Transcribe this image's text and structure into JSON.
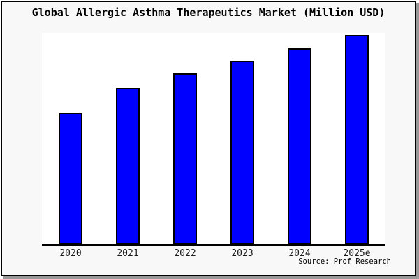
{
  "window": {
    "background_color": "#f8f8f8",
    "plot_background_color": "#ffffff",
    "border_color": "#000000",
    "shadow_color": "#999999"
  },
  "header": {
    "title": "Global Allergic Asthma Therapeutics Market (Million USD)"
  },
  "footer": {
    "source": "Source: Prof Research"
  },
  "chart_data": {
    "type": "bar",
    "title": "Global Allergic Asthma Therapeutics Market (Million USD)",
    "categories": [
      "2020",
      "2021",
      "2022",
      "2023",
      "2024",
      "2025e"
    ],
    "values": [
      62.5,
      74.5,
      81.5,
      87.5,
      93.5,
      100
    ],
    "value_scale_note": "no y-axis, gridlines or data labels shown; values estimated from bar heights relative to tallest bar (2025e = 100)",
    "xlabel": "",
    "ylabel": "",
    "ylim": [
      0,
      100
    ],
    "grid": false,
    "y_axis_visible": false,
    "x_axis_visible": true,
    "legend_position": "none",
    "bar_color": "#0000ff",
    "bar_border_color": "#000000",
    "source": "Source: Prof Research"
  }
}
